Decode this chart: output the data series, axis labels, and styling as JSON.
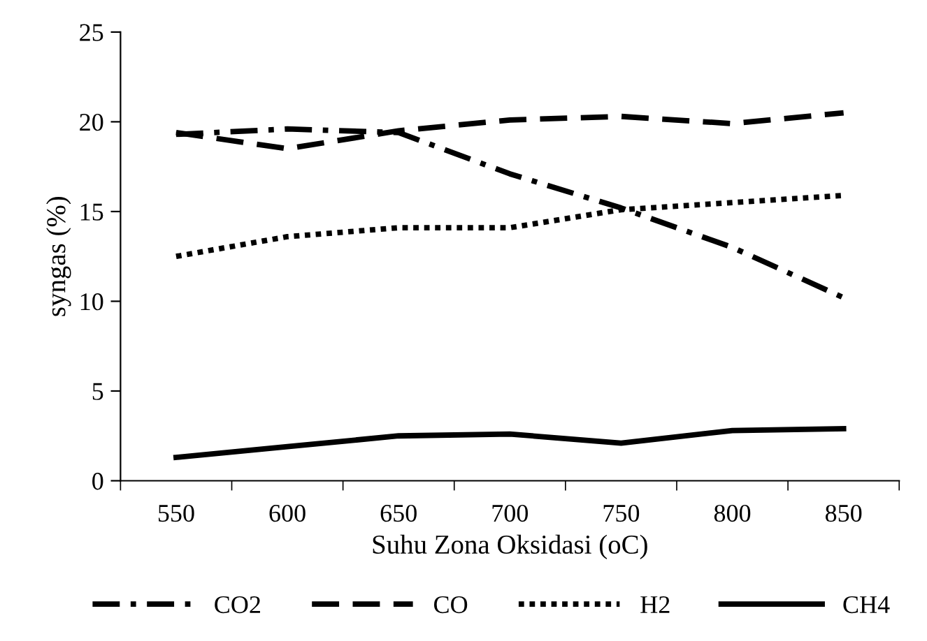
{
  "chart_data": {
    "type": "line",
    "xlabel": "Suhu Zona Oksidasi (oC)",
    "ylabel": "syngas (%)",
    "categories": [
      "550",
      "600",
      "650",
      "700",
      "750",
      "800",
      "850"
    ],
    "series": [
      {
        "name": "CO2",
        "color": "#000000",
        "line_style": "dashdot",
        "values": [
          19.3,
          19.6,
          19.4,
          17.1,
          15.2,
          13.0,
          10.2
        ]
      },
      {
        "name": "CO",
        "color": "#000000",
        "line_style": "dashed",
        "values": [
          19.4,
          18.5,
          19.5,
          20.1,
          20.3,
          19.9,
          20.5
        ]
      },
      {
        "name": "H2",
        "color": "#000000",
        "line_style": "dotted",
        "values": [
          12.5,
          13.6,
          14.1,
          14.1,
          15.1,
          15.5,
          15.9
        ]
      },
      {
        "name": "CH4",
        "color": "#000000",
        "line_style": "solid",
        "values": [
          1.3,
          1.9,
          2.5,
          2.6,
          2.1,
          2.8,
          2.9
        ]
      }
    ],
    "ylim": [
      0,
      25
    ],
    "yticks": [
      0,
      5,
      10,
      15,
      20,
      25
    ],
    "grid": false,
    "legend": "bottom",
    "marker": "none"
  }
}
